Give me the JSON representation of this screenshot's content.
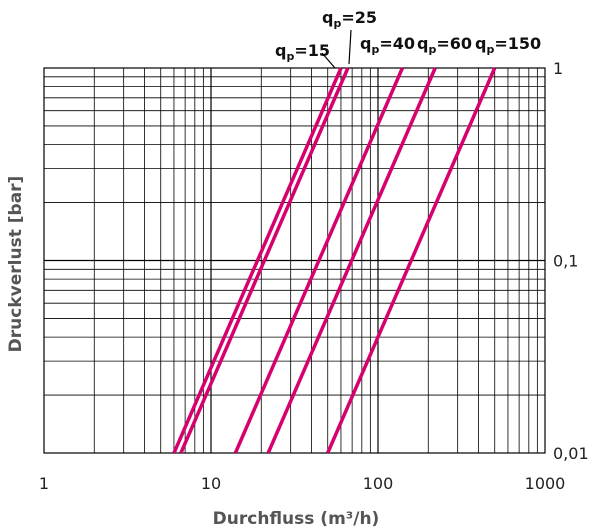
{
  "chart_data": {
    "type": "line",
    "xscale": "log",
    "yscale": "log",
    "xlim": [
      1,
      1000
    ],
    "ylim": [
      0.01,
      1
    ],
    "grid": true,
    "xlabel": "Durchfluss (m³/h)",
    "ylabel": "Druckverlust [bar]",
    "x_ticks": [
      "1",
      "10",
      "100",
      "1000"
    ],
    "y_ticks": [
      "1",
      "0,1",
      "0,01"
    ],
    "line_color": "#d6006e",
    "series": [
      {
        "name": "qp=15",
        "label_main": "q",
        "label_sub": "p",
        "label_value": "=15",
        "points": [
          [
            6.0,
            0.01
          ],
          [
            60.0,
            1.0
          ]
        ]
      },
      {
        "name": "qp=25",
        "label_main": "q",
        "label_sub": "p",
        "label_value": "=25",
        "points": [
          [
            6.6,
            0.01
          ],
          [
            66.0,
            1.0
          ]
        ]
      },
      {
        "name": "qp=40",
        "label_main": "q",
        "label_sub": "p",
        "label_value": "=40",
        "points": [
          [
            14.0,
            0.01
          ],
          [
            140.0,
            1.0
          ]
        ]
      },
      {
        "name": "qp=60",
        "label_main": "q",
        "label_sub": "p",
        "label_value": "=60",
        "points": [
          [
            22.0,
            0.01
          ],
          [
            220.0,
            1.0
          ]
        ]
      },
      {
        "name": "qp=150",
        "label_main": "q",
        "label_sub": "p",
        "label_value": "=150",
        "points": [
          [
            50.0,
            0.01
          ],
          [
            500.0,
            1.0
          ]
        ]
      }
    ]
  }
}
